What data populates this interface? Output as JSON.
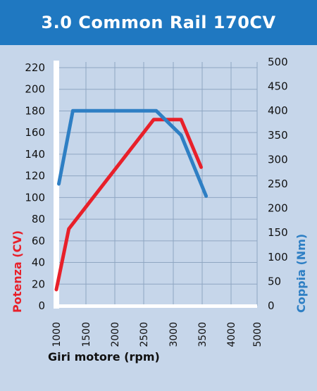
{
  "title": "3.0 Common Rail 170CV",
  "chart_data": {
    "type": "line",
    "title": "3.0 Common Rail 170CV",
    "xlabel": "Giri motore (rpm)",
    "ylabel_left": "Potenza (CV)",
    "ylabel_right": "Coppia (Nm)",
    "x_ticks": [
      "1000",
      "1500",
      "2000",
      "2500",
      "3000",
      "3500",
      "4000",
      "5000"
    ],
    "y_left_ticks": [
      "0",
      "20",
      "40",
      "60",
      "80",
      "100",
      "120",
      "140",
      "160",
      "180",
      "200",
      "220"
    ],
    "y_right_ticks": [
      "0",
      "50",
      "100",
      "150",
      "200",
      "250",
      "300",
      "350",
      "400",
      "450",
      "500"
    ],
    "xlim": [
      1000,
      4500
    ],
    "ylim_left": [
      0,
      220
    ],
    "ylim_right": [
      0,
      500
    ],
    "grid": true,
    "series": [
      {
        "name": "Potenza (CV)",
        "axis": "left",
        "color": "#e8202a",
        "x": [
          1000,
          1250,
          2950,
          3500,
          3900
        ],
        "values": [
          15,
          71,
          172,
          172,
          128
        ]
      },
      {
        "name": "Coppia (Nm)",
        "axis": "right",
        "color": "#2e7fc4",
        "x": [
          1050,
          1330,
          3000,
          3500,
          4000
        ],
        "values": [
          250,
          400,
          400,
          350,
          225
        ]
      }
    ],
    "colors": {
      "background": "#c6d6ea",
      "title_bar": "#1f78c1",
      "axis": "#ffffff",
      "grid": "#8fa6c2",
      "tick_text": "#111111"
    }
  }
}
